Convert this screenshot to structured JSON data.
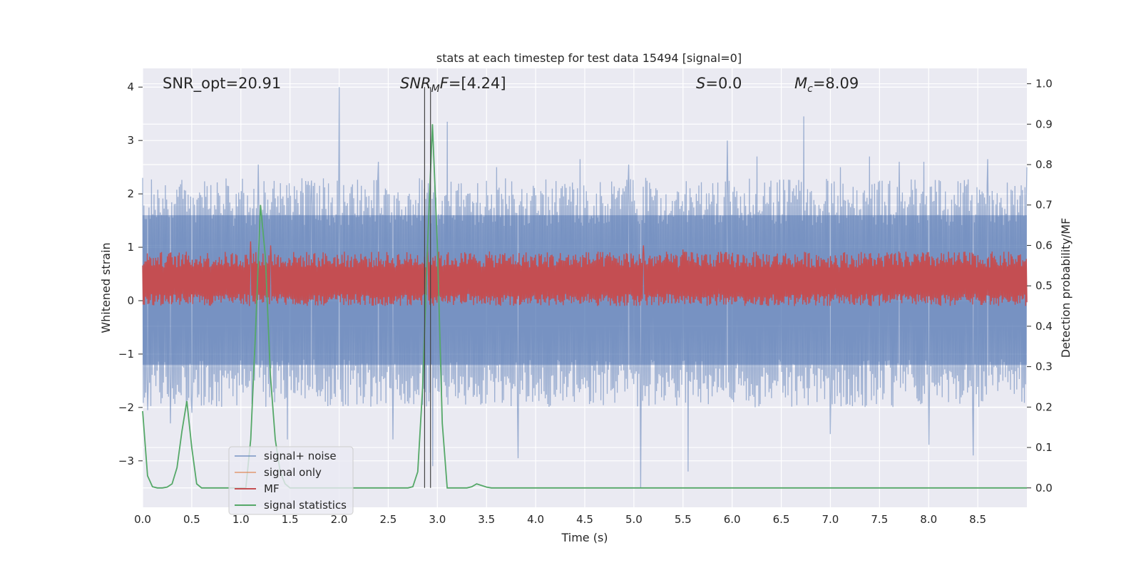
{
  "chart_data": {
    "type": "line",
    "title": "stats at each timestep for test data 15494 [signal=0]",
    "xlabel": "Time (s)",
    "ylabel_left": "Whitened strain",
    "ylabel_right": "Detection probability/MF",
    "xlim": [
      0.0,
      9.0
    ],
    "ylim_left": [
      -3.87,
      4.35
    ],
    "ylim_right": [
      -0.048,
      1.038
    ],
    "xticks": [
      0.0,
      0.5,
      1.0,
      1.5,
      2.0,
      2.5,
      3.0,
      3.5,
      4.0,
      4.5,
      5.0,
      5.5,
      6.0,
      6.5,
      7.0,
      7.5,
      8.0,
      8.5
    ],
    "xtick_labels": [
      "0.0",
      "0.5",
      "1.0",
      "1.5",
      "2.0",
      "2.5",
      "3.0",
      "3.5",
      "4.0",
      "4.5",
      "5.0",
      "5.5",
      "6.0",
      "6.5",
      "7.0",
      "7.5",
      "8.0",
      "8.5"
    ],
    "yticks_left": [
      -3,
      -2,
      -1,
      0,
      1,
      2,
      3,
      4
    ],
    "ytick_labels_left": [
      "−3",
      "−2",
      "−1",
      "0",
      "1",
      "2",
      "3",
      "4"
    ],
    "yticks_right": [
      0.0,
      0.1,
      0.2,
      0.3,
      0.4,
      0.5,
      0.6,
      0.7,
      0.8,
      0.9,
      1.0
    ],
    "ytick_labels_right": [
      "0.0",
      "0.1",
      "0.2",
      "0.3",
      "0.4",
      "0.5",
      "0.6",
      "0.7",
      "0.8",
      "0.9",
      "1.0"
    ],
    "grid": true,
    "legend_position": "lower-left",
    "annotations": [
      {
        "text": "SNR_opt=20.91",
        "x": 0.2,
        "y": 4.05
      },
      {
        "text": "SNR_MF=[4.24]",
        "x": 2.6,
        "y": 4.05
      },
      {
        "text": "S=0.0",
        "x": 5.6,
        "y": 4.05
      },
      {
        "text": "M_c=8.09",
        "x": 6.6,
        "y": 4.05
      }
    ],
    "vertical_lines": [
      2.87,
      2.93
    ],
    "series": [
      {
        "name": "signal+ noise",
        "color": "#4c72b0",
        "axis": "left",
        "kind": "noise",
        "envelope_typical": [
          -1.2,
          1.6
        ],
        "peaks": [
          [
            0.0,
            2.3
          ],
          [
            0.05,
            -2.05
          ],
          [
            0.28,
            -2.3
          ],
          [
            0.5,
            -2.1
          ],
          [
            0.95,
            2.0
          ],
          [
            1.18,
            2.55
          ],
          [
            1.47,
            -2.6
          ],
          [
            1.72,
            2.25
          ],
          [
            2.0,
            4.0
          ],
          [
            2.4,
            2.6
          ],
          [
            2.55,
            -2.6
          ],
          [
            2.95,
            -3.1
          ],
          [
            3.1,
            3.35
          ],
          [
            3.6,
            2.5
          ],
          [
            3.82,
            -2.95
          ],
          [
            4.45,
            2.65
          ],
          [
            4.95,
            2.55
          ],
          [
            5.07,
            -3.5
          ],
          [
            5.12,
            2.3
          ],
          [
            5.55,
            -3.2
          ],
          [
            5.95,
            3.0
          ],
          [
            6.25,
            2.7
          ],
          [
            6.73,
            3.45
          ],
          [
            7.0,
            -2.5
          ],
          [
            7.1,
            2.5
          ],
          [
            7.4,
            2.7
          ],
          [
            7.7,
            2.6
          ],
          [
            7.95,
            2.6
          ],
          [
            8.0,
            -2.7
          ],
          [
            8.45,
            -2.9
          ],
          [
            8.6,
            2.65
          ],
          [
            9.0,
            2.5
          ]
        ]
      },
      {
        "name": "signal only",
        "color": "#dd8452",
        "axis": "left",
        "values": []
      },
      {
        "name": "MF",
        "color": "#c44e52",
        "axis": "right",
        "kind": "band",
        "band": [
          0.46,
          0.56
        ],
        "peaks": [
          [
            1.1,
            0.61
          ],
          [
            1.3,
            0.6
          ],
          [
            2.9,
            0.6
          ],
          [
            5.1,
            0.6
          ],
          [
            5.5,
            0.59
          ],
          [
            7.35,
            0.58
          ]
        ]
      },
      {
        "name": "signal statistics",
        "color": "#55a868",
        "axis": "right",
        "x": [
          0.0,
          0.05,
          0.1,
          0.15,
          0.2,
          0.25,
          0.3,
          0.35,
          0.4,
          0.45,
          0.5,
          0.55,
          0.6,
          0.65,
          0.7,
          0.75,
          0.8,
          0.85,
          0.9,
          0.95,
          1.0,
          1.05,
          1.1,
          1.15,
          1.2,
          1.25,
          1.3,
          1.35,
          1.4,
          1.45,
          1.5,
          1.55,
          1.6,
          2.7,
          2.75,
          2.8,
          2.85,
          2.9,
          2.95,
          3.0,
          3.05,
          3.1,
          3.15,
          3.2,
          3.25,
          3.3,
          3.35,
          3.4,
          3.45,
          3.5,
          3.55,
          3.6,
          9.0
        ],
        "y": [
          0.19,
          0.03,
          0.003,
          0.0,
          0.0,
          0.002,
          0.01,
          0.05,
          0.14,
          0.215,
          0.1,
          0.01,
          0.0,
          0.0,
          0.0,
          0.0,
          0.0,
          0.0,
          0.0,
          0.0,
          0.0,
          0.0,
          0.12,
          0.39,
          0.7,
          0.57,
          0.28,
          0.12,
          0.04,
          0.01,
          0.0,
          0.0,
          0.0,
          0.0,
          0.003,
          0.04,
          0.25,
          0.6,
          0.9,
          0.6,
          0.16,
          0.0,
          0.0,
          0.0,
          0.0,
          0.0,
          0.003,
          0.01,
          0.006,
          0.002,
          0.0,
          0.0,
          0.0
        ]
      }
    ]
  }
}
